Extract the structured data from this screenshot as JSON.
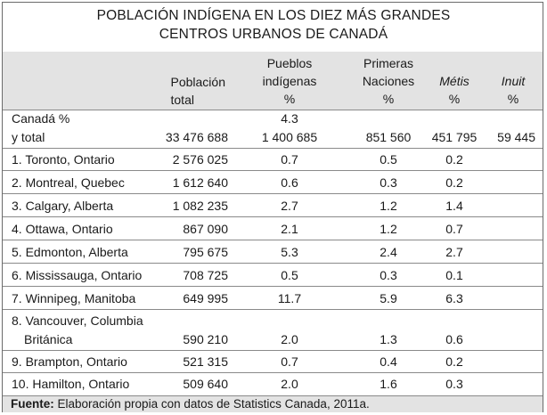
{
  "title": {
    "line1": "POBLACIÓN INDÍGENA EN LOS DIEZ MÁS GRANDES",
    "line2": "CENTROS URBANOS DE CANADÁ"
  },
  "headers": {
    "poblacion": [
      "Población",
      "total"
    ],
    "pueblos": [
      "Pueblos",
      "indígenas",
      "%"
    ],
    "primeras": [
      "Primeras",
      "Naciones",
      "%"
    ],
    "metis": [
      "Métis",
      "%"
    ],
    "inuit": [
      "Inuit",
      "%"
    ]
  },
  "canada": {
    "label_line1": "Canadá %",
    "label_line2": "y total",
    "pueblos_pct": "4.3",
    "poblacion": "33 476 688",
    "pueblos": "1 400 685",
    "primeras": "851 560",
    "metis": "451 795",
    "inuit": "59 445"
  },
  "rows": [
    {
      "name": "1. Toronto, Ontario",
      "pop": "2 576 025",
      "pi": "0.7",
      "pn": "0.5",
      "met": "0.2"
    },
    {
      "name": "2. Montreal, Quebec",
      "pop": "1 612 640",
      "pi": "0.6",
      "pn": "0.3",
      "met": "0.2"
    },
    {
      "name": "3. Calgary, Alberta",
      "pop": "1 082 235",
      "pi": "2.7",
      "pn": "1.2",
      "met": "1.4"
    },
    {
      "name": "4. Ottawa, Ontario",
      "pop": "867 090",
      "pi": "2.1",
      "pn": "1.2",
      "met": "0.7"
    },
    {
      "name": "5. Edmonton, Alberta",
      "pop": "795 675",
      "pi": "5.3",
      "pn": "2.4",
      "met": "2.7"
    },
    {
      "name": "6. Mississauga, Ontario",
      "pop": "708 725",
      "pi": "0.5",
      "pn": "0.3",
      "met": "0.1"
    },
    {
      "name": "7. Winnipeg, Manitoba",
      "pop": "649 995",
      "pi": "11.7",
      "pn": "5.9",
      "met": "6.3"
    },
    {
      "name": "8. Vancouver, Columbia",
      "name2": "Británica",
      "pop": "590 210",
      "pi": "2.0",
      "pn": "1.3",
      "met": "0.6"
    },
    {
      "name": "9. Brampton, Ontario",
      "pop": "521 315",
      "pi": "0.7",
      "pn": "0.4",
      "met": "0.2"
    },
    {
      "name": "10. Hamilton, Ontario",
      "pop": "509 640",
      "pi": "2.0",
      "pn": "1.6",
      "met": "0.3"
    }
  ],
  "footer": {
    "label": "Fuente:",
    "text": " Elaboración propia con datos de Statistics Canada, 2011a."
  }
}
